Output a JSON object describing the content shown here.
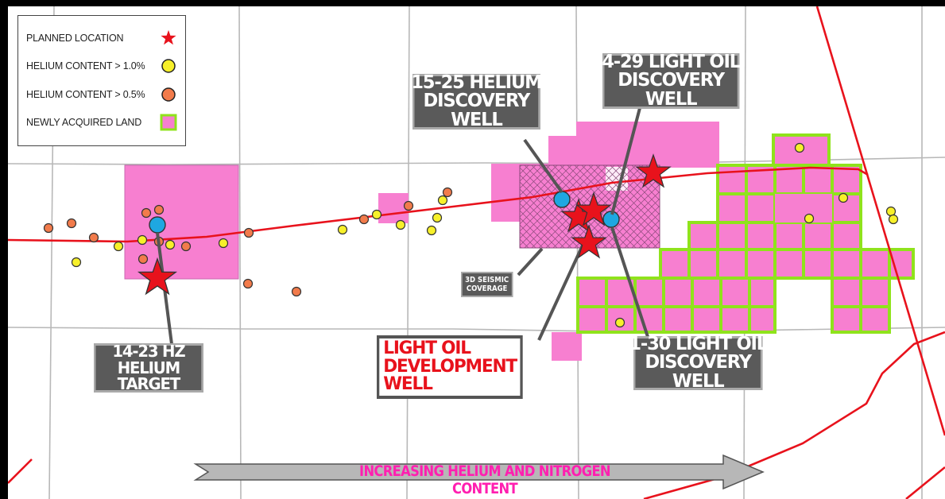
{
  "legend": {
    "items": [
      {
        "label": "PLANNED LOCATION",
        "icon": "red-star-icon",
        "color": "#e8121c"
      },
      {
        "label": "HELIUM CONTENT > 1.0%",
        "icon": "yellow-circle-icon",
        "color": "#f7f02a"
      },
      {
        "label": "HELIUM CONTENT > 0.5%",
        "icon": "orange-circle-icon",
        "color": "#f27b4b"
      },
      {
        "label": "NEWLY ACQUIRED LAND",
        "icon": "pink-square-icon",
        "color": "#f77fd0"
      }
    ]
  },
  "callouts": {
    "helium_target": "14-23 HZ\nHELIUM TARGET",
    "helium_discovery": "15-25 HELIUM\nDISCOVERY WELL",
    "oil_discovery_4_29": "4-29 LIGHT OIL\nDISCOVERY WELL",
    "oil_discovery_1_30": "1-30 LIGHT OIL\nDISCOVERY WELL",
    "oil_development": "LIGHT OIL\nDEVELOPMENT WELL",
    "seismic": "3D SEISMIC\nCOVERAGE"
  },
  "arrow": {
    "label": "INCREASING HELIUM AND NITROGEN CONTENT"
  },
  "colors": {
    "land": "#f77fd0",
    "land_border": "#8fe31c",
    "pipeline": "#e8121c",
    "well_blue": "#1ea7e1",
    "grid": "#b8b8b8",
    "accent_text": "#ff1fb0"
  }
}
